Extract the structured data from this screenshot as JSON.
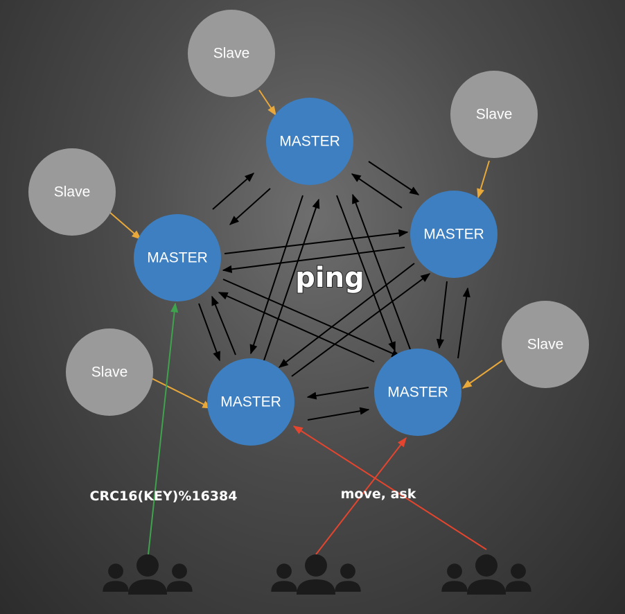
{
  "labels": {
    "master": "MASTER",
    "slave": "Slave",
    "ping": "ping",
    "hash": "CRC16(KEY)%16384",
    "redirect": "move, ask"
  },
  "colors": {
    "master_fill": "#3d7fc0",
    "slave_fill": "#9a9a9a",
    "ping_arrow": "#000000",
    "replication_arrow": "#e9a83a",
    "client_hash_arrow": "#3fa34d",
    "redirect_arrow": "#e5452e"
  },
  "icons": {
    "client_group": "user-group-icon"
  }
}
